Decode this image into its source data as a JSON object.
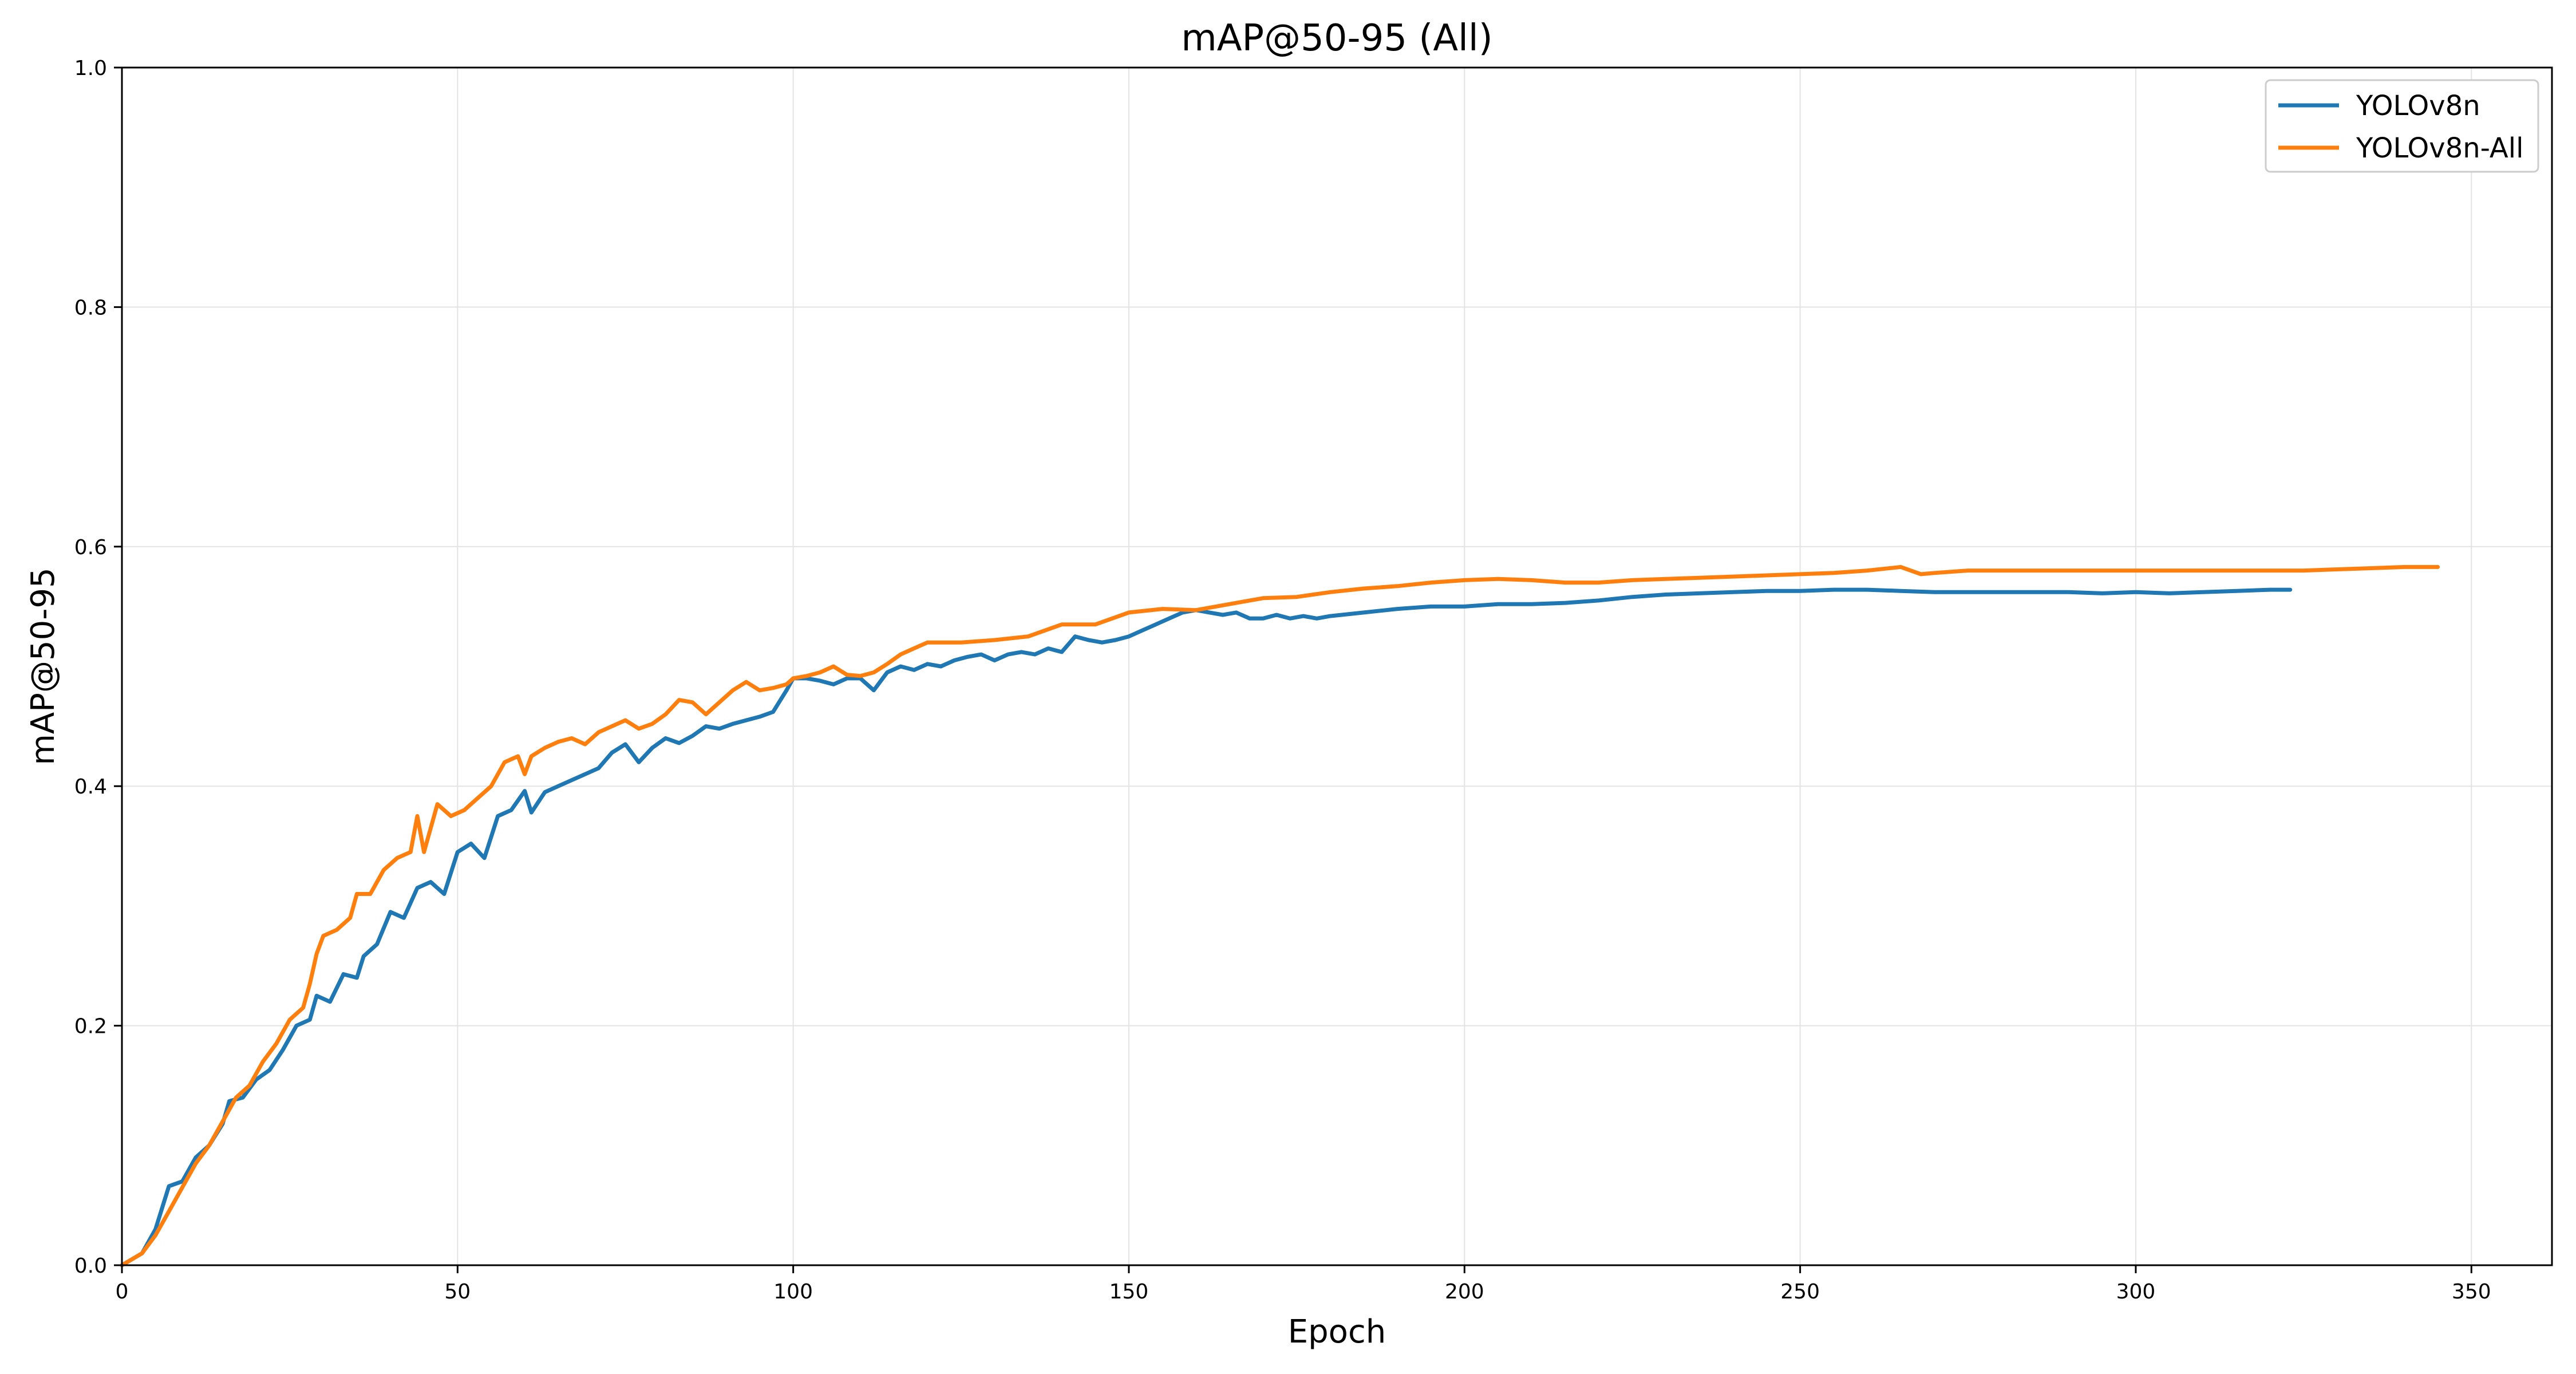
{
  "chart_data": {
    "type": "line",
    "title": "mAP@50-95 (All)",
    "xlabel": "Epoch",
    "ylabel": "mAP@50-95",
    "xlim": [
      0,
      362
    ],
    "ylim": [
      0.0,
      1.0
    ],
    "xticks": [
      0,
      50,
      100,
      150,
      200,
      250,
      300,
      350
    ],
    "yticks": [
      0.0,
      0.2,
      0.4,
      0.6,
      0.8,
      1.0
    ],
    "ytick_labels": [
      "0.0",
      "0.2",
      "0.4",
      "0.6",
      "0.8",
      "1.0"
    ],
    "grid": true,
    "legend_position": "top-right",
    "series": [
      {
        "name": "YOLOv8n",
        "color": "#1f77b4",
        "points": [
          [
            0,
            0.0
          ],
          [
            3,
            0.01
          ],
          [
            5,
            0.03
          ],
          [
            7,
            0.066
          ],
          [
            9,
            0.07
          ],
          [
            11,
            0.09
          ],
          [
            13,
            0.1
          ],
          [
            15,
            0.118
          ],
          [
            16,
            0.137
          ],
          [
            18,
            0.14
          ],
          [
            20,
            0.155
          ],
          [
            22,
            0.163
          ],
          [
            24,
            0.18
          ],
          [
            26,
            0.2
          ],
          [
            28,
            0.205
          ],
          [
            29,
            0.225
          ],
          [
            31,
            0.22
          ],
          [
            33,
            0.243
          ],
          [
            35,
            0.24
          ],
          [
            36,
            0.258
          ],
          [
            38,
            0.268
          ],
          [
            40,
            0.295
          ],
          [
            42,
            0.29
          ],
          [
            44,
            0.315
          ],
          [
            46,
            0.32
          ],
          [
            48,
            0.31
          ],
          [
            50,
            0.345
          ],
          [
            52,
            0.352
          ],
          [
            54,
            0.34
          ],
          [
            56,
            0.375
          ],
          [
            58,
            0.38
          ],
          [
            60,
            0.396
          ],
          [
            61,
            0.378
          ],
          [
            63,
            0.395
          ],
          [
            65,
            0.4
          ],
          [
            67,
            0.405
          ],
          [
            69,
            0.41
          ],
          [
            71,
            0.415
          ],
          [
            73,
            0.428
          ],
          [
            75,
            0.435
          ],
          [
            77,
            0.42
          ],
          [
            79,
            0.432
          ],
          [
            81,
            0.44
          ],
          [
            83,
            0.436
          ],
          [
            85,
            0.442
          ],
          [
            87,
            0.45
          ],
          [
            89,
            0.448
          ],
          [
            91,
            0.452
          ],
          [
            93,
            0.455
          ],
          [
            95,
            0.458
          ],
          [
            97,
            0.462
          ],
          [
            99,
            0.48
          ],
          [
            100,
            0.49
          ],
          [
            102,
            0.49
          ],
          [
            104,
            0.488
          ],
          [
            106,
            0.485
          ],
          [
            108,
            0.49
          ],
          [
            110,
            0.49
          ],
          [
            112,
            0.48
          ],
          [
            114,
            0.495
          ],
          [
            116,
            0.5
          ],
          [
            118,
            0.497
          ],
          [
            120,
            0.502
          ],
          [
            122,
            0.5
          ],
          [
            124,
            0.505
          ],
          [
            126,
            0.508
          ],
          [
            128,
            0.51
          ],
          [
            130,
            0.505
          ],
          [
            132,
            0.51
          ],
          [
            134,
            0.512
          ],
          [
            136,
            0.51
          ],
          [
            138,
            0.515
          ],
          [
            140,
            0.512
          ],
          [
            142,
            0.525
          ],
          [
            144,
            0.522
          ],
          [
            146,
            0.52
          ],
          [
            148,
            0.522
          ],
          [
            150,
            0.525
          ],
          [
            152,
            0.53
          ],
          [
            154,
            0.535
          ],
          [
            156,
            0.54
          ],
          [
            158,
            0.545
          ],
          [
            160,
            0.547
          ],
          [
            162,
            0.545
          ],
          [
            164,
            0.543
          ],
          [
            166,
            0.545
          ],
          [
            168,
            0.54
          ],
          [
            170,
            0.54
          ],
          [
            172,
            0.543
          ],
          [
            174,
            0.54
          ],
          [
            176,
            0.542
          ],
          [
            178,
            0.54
          ],
          [
            180,
            0.542
          ],
          [
            185,
            0.545
          ],
          [
            190,
            0.548
          ],
          [
            195,
            0.55
          ],
          [
            200,
            0.55
          ],
          [
            205,
            0.552
          ],
          [
            210,
            0.552
          ],
          [
            215,
            0.553
          ],
          [
            220,
            0.555
          ],
          [
            225,
            0.558
          ],
          [
            230,
            0.56
          ],
          [
            235,
            0.561
          ],
          [
            240,
            0.562
          ],
          [
            245,
            0.563
          ],
          [
            250,
            0.563
          ],
          [
            255,
            0.564
          ],
          [
            260,
            0.564
          ],
          [
            265,
            0.563
          ],
          [
            270,
            0.562
          ],
          [
            275,
            0.562
          ],
          [
            280,
            0.562
          ],
          [
            285,
            0.562
          ],
          [
            290,
            0.562
          ],
          [
            295,
            0.561
          ],
          [
            300,
            0.562
          ],
          [
            305,
            0.561
          ],
          [
            310,
            0.562
          ],
          [
            315,
            0.563
          ],
          [
            320,
            0.564
          ],
          [
            323,
            0.564
          ]
        ]
      },
      {
        "name": "YOLOv8n-All",
        "color": "#ff7f0e",
        "points": [
          [
            0,
            0.0
          ],
          [
            3,
            0.01
          ],
          [
            5,
            0.025
          ],
          [
            7,
            0.045
          ],
          [
            9,
            0.065
          ],
          [
            11,
            0.085
          ],
          [
            13,
            0.1
          ],
          [
            15,
            0.12
          ],
          [
            17,
            0.14
          ],
          [
            19,
            0.15
          ],
          [
            21,
            0.17
          ],
          [
            23,
            0.185
          ],
          [
            25,
            0.205
          ],
          [
            27,
            0.215
          ],
          [
            28,
            0.235
          ],
          [
            29,
            0.26
          ],
          [
            30,
            0.275
          ],
          [
            32,
            0.28
          ],
          [
            34,
            0.29
          ],
          [
            35,
            0.31
          ],
          [
            37,
            0.31
          ],
          [
            39,
            0.33
          ],
          [
            41,
            0.34
          ],
          [
            43,
            0.345
          ],
          [
            44,
            0.375
          ],
          [
            45,
            0.345
          ],
          [
            47,
            0.385
          ],
          [
            49,
            0.375
          ],
          [
            51,
            0.38
          ],
          [
            53,
            0.39
          ],
          [
            55,
            0.4
          ],
          [
            57,
            0.42
          ],
          [
            59,
            0.425
          ],
          [
            60,
            0.41
          ],
          [
            61,
            0.425
          ],
          [
            63,
            0.432
          ],
          [
            65,
            0.437
          ],
          [
            67,
            0.44
          ],
          [
            69,
            0.435
          ],
          [
            71,
            0.445
          ],
          [
            73,
            0.45
          ],
          [
            75,
            0.455
          ],
          [
            77,
            0.448
          ],
          [
            79,
            0.452
          ],
          [
            81,
            0.46
          ],
          [
            83,
            0.472
          ],
          [
            85,
            0.47
          ],
          [
            87,
            0.46
          ],
          [
            89,
            0.47
          ],
          [
            91,
            0.48
          ],
          [
            93,
            0.487
          ],
          [
            95,
            0.48
          ],
          [
            97,
            0.482
          ],
          [
            99,
            0.485
          ],
          [
            100,
            0.49
          ],
          [
            102,
            0.492
          ],
          [
            104,
            0.495
          ],
          [
            106,
            0.5
          ],
          [
            108,
            0.493
          ],
          [
            110,
            0.492
          ],
          [
            112,
            0.495
          ],
          [
            114,
            0.502
          ],
          [
            116,
            0.51
          ],
          [
            118,
            0.515
          ],
          [
            120,
            0.52
          ],
          [
            125,
            0.52
          ],
          [
            130,
            0.522
          ],
          [
            135,
            0.525
          ],
          [
            140,
            0.535
          ],
          [
            145,
            0.535
          ],
          [
            150,
            0.545
          ],
          [
            155,
            0.548
          ],
          [
            160,
            0.547
          ],
          [
            165,
            0.552
          ],
          [
            170,
            0.557
          ],
          [
            175,
            0.558
          ],
          [
            180,
            0.562
          ],
          [
            185,
            0.565
          ],
          [
            190,
            0.567
          ],
          [
            195,
            0.57
          ],
          [
            200,
            0.572
          ],
          [
            205,
            0.573
          ],
          [
            210,
            0.572
          ],
          [
            215,
            0.57
          ],
          [
            220,
            0.57
          ],
          [
            225,
            0.572
          ],
          [
            230,
            0.573
          ],
          [
            235,
            0.574
          ],
          [
            240,
            0.575
          ],
          [
            245,
            0.576
          ],
          [
            250,
            0.577
          ],
          [
            255,
            0.578
          ],
          [
            260,
            0.58
          ],
          [
            265,
            0.583
          ],
          [
            268,
            0.577
          ],
          [
            270,
            0.578
          ],
          [
            275,
            0.58
          ],
          [
            280,
            0.58
          ],
          [
            285,
            0.58
          ],
          [
            290,
            0.58
          ],
          [
            295,
            0.58
          ],
          [
            300,
            0.58
          ],
          [
            305,
            0.58
          ],
          [
            310,
            0.58
          ],
          [
            315,
            0.58
          ],
          [
            320,
            0.58
          ],
          [
            325,
            0.58
          ],
          [
            330,
            0.581
          ],
          [
            335,
            0.582
          ],
          [
            340,
            0.583
          ],
          [
            345,
            0.583
          ]
        ]
      }
    ]
  }
}
